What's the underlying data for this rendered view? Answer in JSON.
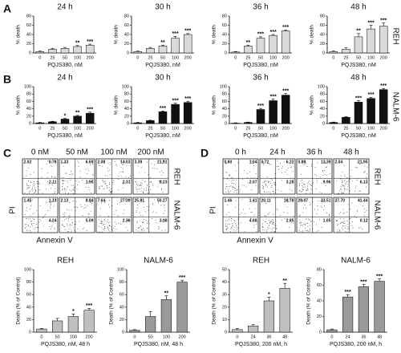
{
  "panel_letters": [
    "A",
    "B",
    "C",
    "D"
  ],
  "row_labels": [
    "REH",
    "NALM-6"
  ],
  "chart_data": [
    {
      "type": "bar",
      "title": "24 h",
      "x_label": "PQJS380, nM",
      "y_label": "% death",
      "categories": [
        "0",
        "25",
        "50",
        "100",
        "200"
      ],
      "values": [
        3,
        8,
        10,
        14,
        17
      ],
      "errors": [
        1,
        2,
        2,
        2,
        2
      ],
      "stars": [
        null,
        null,
        null,
        "**",
        "***"
      ],
      "ylim": [
        0,
        80
      ],
      "yticks": [
        0,
        20,
        40,
        60,
        80
      ],
      "color": "#d9d9d9"
    },
    {
      "type": "bar",
      "title": "30 h",
      "x_label": "PQJS380, nM",
      "y_label": "% death",
      "categories": [
        "0",
        "25",
        "50",
        "100",
        "200"
      ],
      "values": [
        3,
        10,
        15,
        32,
        40
      ],
      "errors": [
        1,
        2,
        2,
        4,
        2
      ],
      "stars": [
        null,
        null,
        "**",
        "***",
        "***"
      ],
      "ylim": [
        0,
        80
      ],
      "yticks": [
        0,
        20,
        40,
        60,
        80
      ],
      "color": "#d9d9d9"
    },
    {
      "type": "bar",
      "title": "36 h",
      "x_label": "PQJS380, nM",
      "y_label": "% death",
      "categories": [
        "0",
        "25",
        "50",
        "100",
        "200"
      ],
      "values": [
        2,
        15,
        32,
        38,
        48
      ],
      "errors": [
        1,
        2,
        3,
        2,
        2
      ],
      "stars": [
        null,
        "**",
        "***",
        "***",
        "***"
      ],
      "ylim": [
        0,
        80
      ],
      "yticks": [
        0,
        20,
        40,
        60,
        80
      ],
      "color": "#d9d9d9"
    },
    {
      "type": "bar",
      "title": "48 h",
      "x_label": "PQJS380, nM",
      "y_label": "% death",
      "categories": [
        "0",
        "25",
        "50",
        "100",
        "200"
      ],
      "values": [
        3,
        8,
        35,
        52,
        58
      ],
      "errors": [
        1,
        3,
        7,
        8,
        7
      ],
      "stars": [
        null,
        null,
        "**",
        "***",
        "***"
      ],
      "ylim": [
        0,
        80
      ],
      "yticks": [
        0,
        20,
        40,
        60,
        80
      ],
      "color": "#d9d9d9"
    },
    {
      "type": "bar",
      "title": "24 h",
      "x_label": "PQJS380, nM",
      "y_label": "% death",
      "categories": [
        "0",
        "25",
        "50",
        "100",
        "200"
      ],
      "values": [
        2,
        5,
        12,
        20,
        28
      ],
      "errors": [
        1,
        1,
        2,
        2,
        3
      ],
      "stars": [
        null,
        null,
        "*",
        "**",
        "***"
      ],
      "ylim": [
        0,
        100
      ],
      "yticks": [
        0,
        20,
        40,
        60,
        80,
        100
      ],
      "color": "#111111"
    },
    {
      "type": "bar",
      "title": "30 h",
      "x_label": "PQJS380, nM",
      "y_label": "% death",
      "categories": [
        "0",
        "25",
        "50",
        "100",
        "200"
      ],
      "values": [
        2,
        8,
        32,
        52,
        57
      ],
      "errors": [
        1,
        1,
        2,
        3,
        3
      ],
      "stars": [
        null,
        null,
        "***",
        "***",
        "***"
      ],
      "ylim": [
        0,
        100
      ],
      "yticks": [
        0,
        20,
        40,
        60,
        80,
        100
      ],
      "color": "#111111"
    },
    {
      "type": "bar",
      "title": "36 h",
      "x_label": "PQJS380, nM",
      "y_label": "% death",
      "categories": [
        "0",
        "25",
        "50",
        "100",
        "200"
      ],
      "values": [
        1,
        3,
        38,
        62,
        77
      ],
      "errors": [
        1,
        1,
        3,
        4,
        4
      ],
      "stars": [
        null,
        null,
        "***",
        "***",
        "***"
      ],
      "ylim": [
        0,
        100
      ],
      "yticks": [
        0,
        20,
        40,
        60,
        80,
        100
      ],
      "color": "#111111"
    },
    {
      "type": "bar",
      "title": "48 h",
      "x_label": "PQJS380, nM",
      "y_label": "% death",
      "categories": [
        "0",
        "25",
        "50",
        "100",
        "200"
      ],
      "values": [
        3,
        17,
        58,
        68,
        92
      ],
      "errors": [
        1,
        2,
        4,
        3,
        3
      ],
      "stars": [
        null,
        null,
        "***",
        "***",
        "***"
      ],
      "ylim": [
        0,
        100
      ],
      "yticks": [
        0,
        20,
        40,
        60,
        80,
        100
      ],
      "color": "#111111"
    },
    {
      "type": "bar",
      "title": "REH",
      "x_label": "PQJS380, nM, 48 h",
      "y_label": "Death (% of Control)",
      "categories": [
        "0",
        "50",
        "100",
        "200"
      ],
      "values": [
        5,
        18,
        25,
        35
      ],
      "errors": [
        1,
        4,
        4,
        3
      ],
      "stars": [
        null,
        null,
        "*",
        "***"
      ],
      "ylim": [
        0,
        100
      ],
      "yticks": [
        0,
        20,
        40,
        60,
        80,
        100
      ],
      "color": "#bfbfbf"
    },
    {
      "type": "bar",
      "title": "NALM-6",
      "x_label": "PQJS380, nM, 48 h",
      "y_label": "Death (% of Control)",
      "categories": [
        "0",
        "50",
        "100",
        "200"
      ],
      "values": [
        3,
        25,
        52,
        80
      ],
      "errors": [
        1,
        8,
        6,
        3
      ],
      "stars": [
        null,
        null,
        "**",
        "***"
      ],
      "ylim": [
        0,
        100
      ],
      "yticks": [
        0,
        20,
        40,
        60,
        80,
        100
      ],
      "color": "#9a9a9a"
    },
    {
      "type": "bar",
      "title": "REH",
      "x_label": "PQJS380, 200 nM, h",
      "y_label": "Death (% of Control)",
      "categories": [
        "0",
        "24",
        "36",
        "48"
      ],
      "values": [
        2,
        5,
        25,
        35
      ],
      "errors": [
        1,
        1,
        3,
        4
      ],
      "stars": [
        null,
        null,
        "*",
        "**"
      ],
      "ylim": [
        0,
        50
      ],
      "yticks": [
        0,
        10,
        20,
        30,
        40,
        50
      ],
      "color": "#bfbfbf"
    },
    {
      "type": "bar",
      "title": "NALM-6",
      "x_label": "PQJS380, 200 nM, h",
      "y_label": "Death (% of Control)",
      "categories": [
        "0",
        "24",
        "36",
        "48"
      ],
      "values": [
        3,
        45,
        58,
        65
      ],
      "errors": [
        1,
        3,
        3,
        3
      ],
      "stars": [
        null,
        "***",
        "***",
        "***"
      ],
      "ylim": [
        0,
        80
      ],
      "yticks": [
        0,
        20,
        40,
        60,
        80
      ],
      "color": "#9a9a9a"
    }
  ],
  "flow": [
    {
      "columns": [
        "0 nM",
        "50 nM",
        "100 nM",
        "200 nM"
      ],
      "y_label": "PI",
      "x_label": "Annexin V",
      "rows": [
        {
          "label": "REH",
          "cells": [
            [
              "2.02",
              "0.76",
              "2.11"
            ],
            [
              "1.33",
              "6.69",
              "1.55"
            ],
            [
              "2.08",
              "14.03",
              "2.31"
            ],
            [
              "3.39",
              "21.91",
              "8.23"
            ]
          ]
        },
        {
          "label": "NALM-6",
          "cells": [
            [
              "1.45",
              "1.13",
              "4.24"
            ],
            [
              "2.13",
              "8.84",
              "5.09"
            ],
            [
              "7.64",
              "27.30",
              "2.36"
            ],
            [
              "25.81",
              "50.27",
              "3.18"
            ]
          ]
        }
      ]
    },
    {
      "columns": [
        "0 h",
        "24 h",
        "36 h",
        "48 h"
      ],
      "y_label": "PI",
      "x_label": "Annexin V",
      "rows": [
        {
          "label": "REH",
          "cells": [
            [
              "0.60",
              "1.04",
              "2.07"
            ],
            [
              "0.72",
              "6.22",
              "3.28"
            ],
            [
              "0.88",
              "13.39",
              "9.96"
            ],
            [
              "2.04",
              "21.95",
              "6.13"
            ]
          ]
        },
        {
          "label": "NALM-6",
          "cells": [
            [
              "1.46",
              "1.41",
              "4.68"
            ],
            [
              "20.11",
              "18.78",
              "2.85"
            ],
            [
              "28.07",
              "33.51",
              "1.05"
            ],
            [
              "27.70",
              "41.44",
              "0.12"
            ]
          ]
        }
      ]
    }
  ]
}
